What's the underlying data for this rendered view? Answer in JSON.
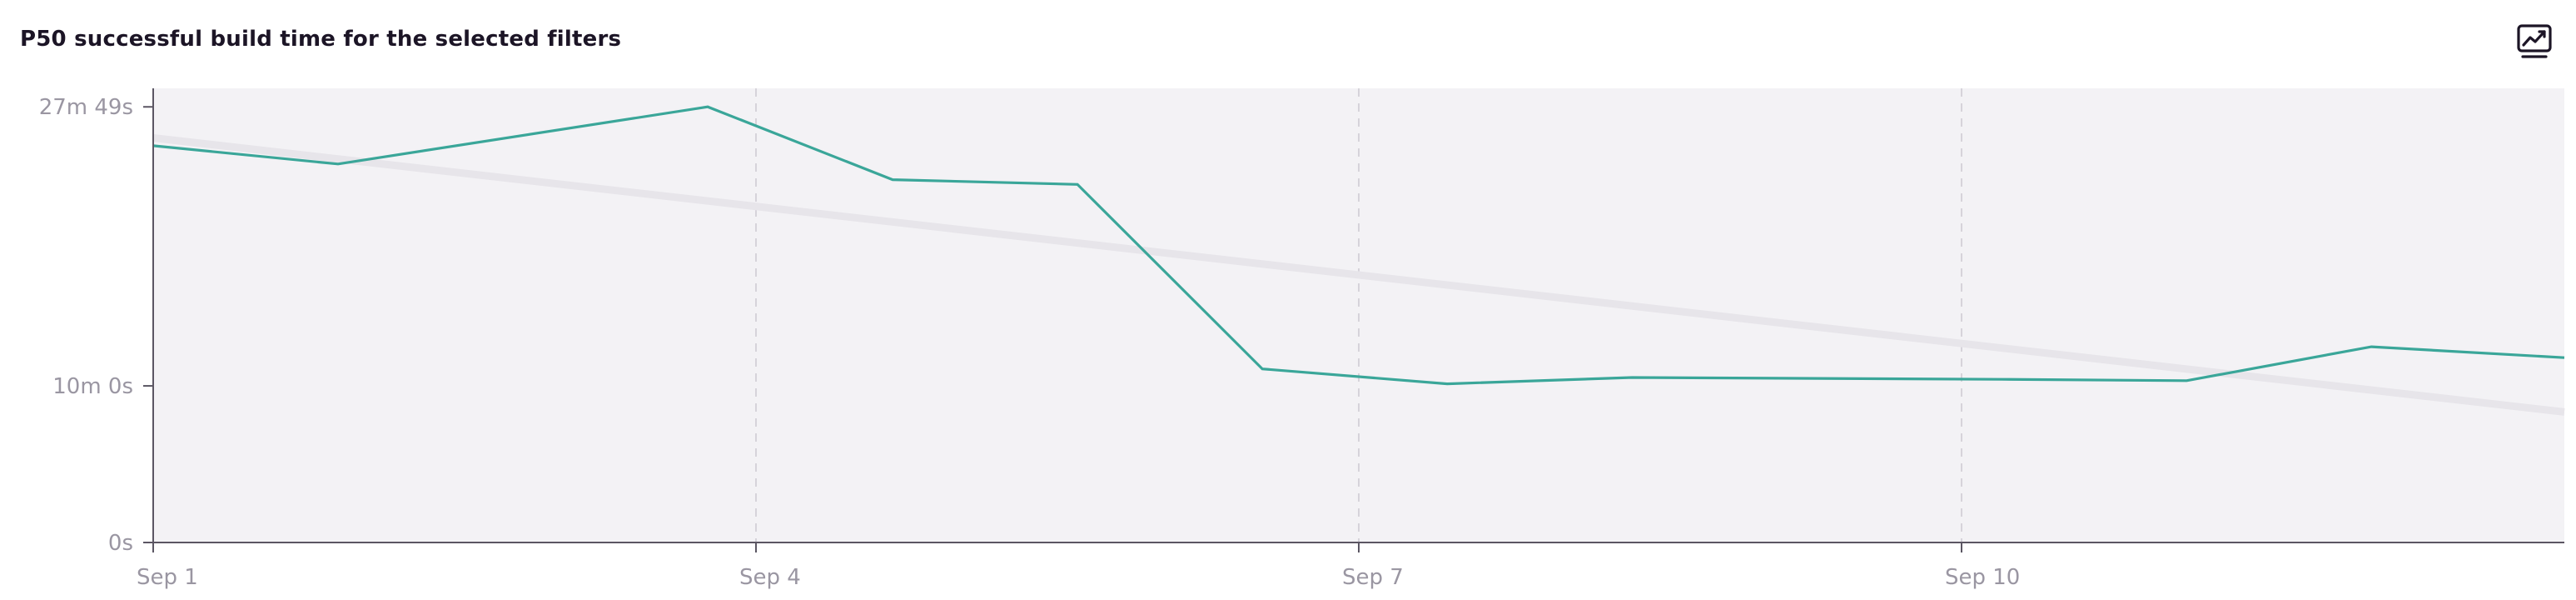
{
  "header": {
    "title": "P50 successful build time for the selected filters",
    "icon": "chart-line-icon"
  },
  "colors": {
    "series": "#3aa699",
    "trend": "#e7e5ea",
    "plot_background": "#f3f2f5",
    "axis": "#5b5663",
    "grid": "#d6d3da"
  },
  "chart_data": {
    "type": "line",
    "title": "P50 successful build time for the selected filters",
    "xlabel": "",
    "ylabel": "",
    "x_ticks": [
      {
        "day": 1,
        "label": "Sep 1"
      },
      {
        "day": 4,
        "label": "Sep 4"
      },
      {
        "day": 7,
        "label": "Sep 7"
      },
      {
        "day": 10,
        "label": "Sep 10"
      }
    ],
    "y_ticks": [
      {
        "value": 0,
        "label": "0s"
      },
      {
        "value": 600,
        "label": "10m 0s"
      },
      {
        "value": 1669,
        "label": "27m 49s"
      }
    ],
    "xlim": [
      1,
      13
    ],
    "ylim": [
      0,
      1740
    ],
    "grid": "vertical dashed at x ticks",
    "legend": "none",
    "series": [
      {
        "values": [
          {
            "x": 1,
            "y": 1520
          },
          {
            "x": 1.92,
            "y": 1450
          },
          {
            "x": 3.76,
            "y": 1669
          },
          {
            "x": 4.68,
            "y": 1390
          },
          {
            "x": 5.6,
            "y": 1372
          },
          {
            "x": 6.52,
            "y": 665
          },
          {
            "x": 7.44,
            "y": 608
          },
          {
            "x": 8.36,
            "y": 632
          },
          {
            "x": 10.2,
            "y": 625
          },
          {
            "x": 11.12,
            "y": 620
          },
          {
            "x": 12.04,
            "y": 750
          },
          {
            "x": 13,
            "y": 708
          }
        ]
      }
    ],
    "trend_line": [
      {
        "x": 1,
        "y": 1550
      },
      {
        "x": 13,
        "y": 500
      }
    ]
  }
}
